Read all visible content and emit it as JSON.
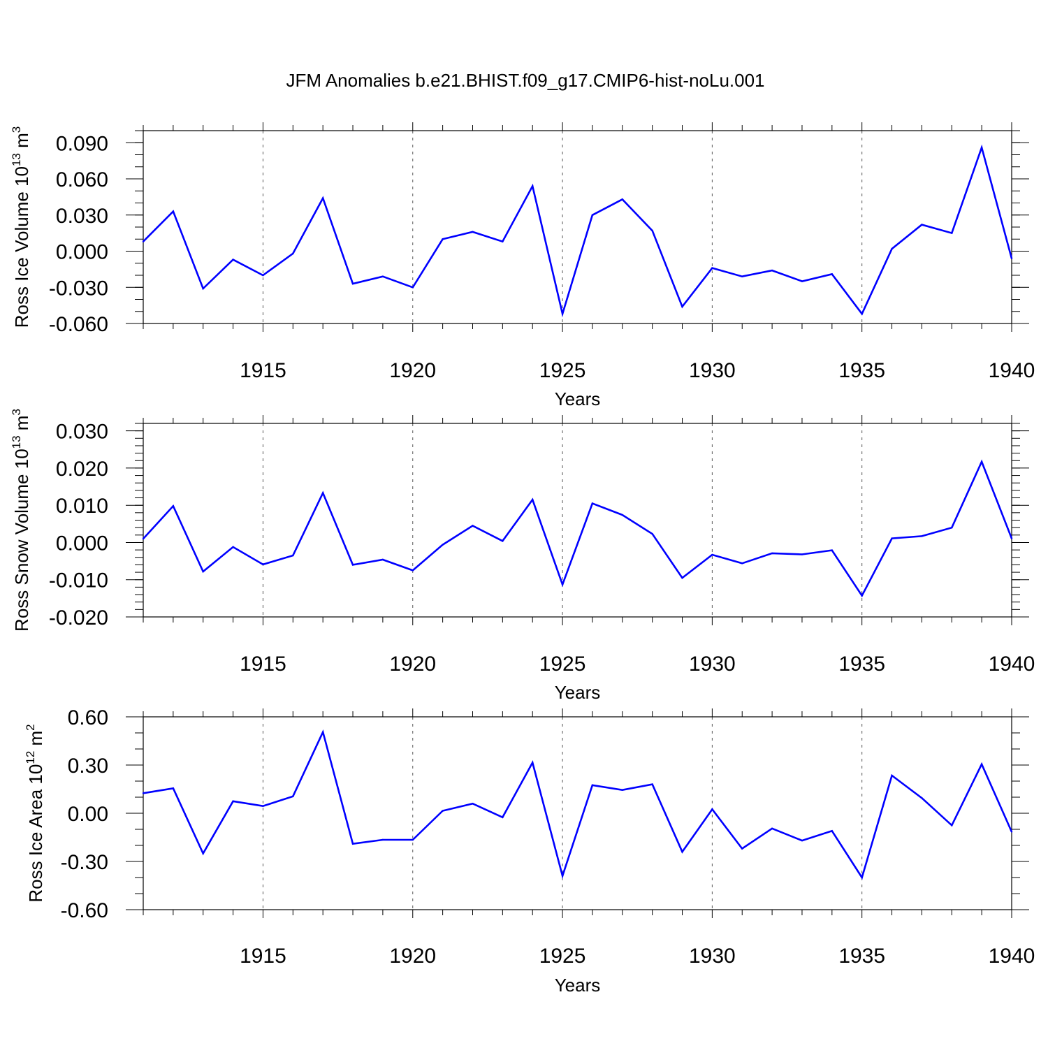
{
  "title": "JFM Anomalies b.e21.BHIST.f09_g17.CMIP6-hist-noLu.001",
  "colors": {
    "line": "#0000ff",
    "axis": "#000000",
    "grid": "#555555"
  },
  "chart_data": [
    {
      "type": "line",
      "ylabel_text": "Ross Ice Volume 10",
      "ylabel_exp": "13",
      "ylabel_unit": " m",
      "ylabel_unit_exp": "3",
      "xlabel": "Years",
      "xlim": [
        1911,
        1940
      ],
      "ylim": [
        -0.06,
        0.1
      ],
      "yticks": [
        -0.06,
        -0.03,
        0.0,
        0.03,
        0.06,
        0.09
      ],
      "ytick_labels": [
        "-0.060",
        "-0.030",
        "0.000",
        "0.030",
        "0.060",
        "0.090"
      ],
      "yminor_step": 0.01,
      "xticks": [
        1915,
        1920,
        1925,
        1930,
        1935,
        1940
      ],
      "xtick_labels": [
        "1915",
        "1920",
        "1925",
        "1930",
        "1935",
        "1940"
      ],
      "grid": "dashed vertical at major x ticks",
      "x": [
        1911,
        1912,
        1913,
        1914,
        1915,
        1916,
        1917,
        1918,
        1919,
        1920,
        1921,
        1922,
        1923,
        1924,
        1925,
        1926,
        1927,
        1928,
        1929,
        1930,
        1931,
        1932,
        1933,
        1934,
        1935,
        1936,
        1937,
        1938,
        1939,
        1940
      ],
      "series": [
        {
          "values": [
            0.008,
            0.033,
            -0.031,
            -0.007,
            -0.02,
            -0.002,
            0.044,
            -0.027,
            -0.021,
            -0.03,
            0.01,
            0.016,
            0.008,
            0.054,
            -0.052,
            0.03,
            0.043,
            0.017,
            -0.046,
            -0.014,
            -0.021,
            -0.016,
            -0.025,
            -0.019,
            -0.052,
            0.002,
            0.022,
            0.015,
            0.086,
            -0.006
          ]
        }
      ]
    },
    {
      "type": "line",
      "ylabel_text": "Ross Snow Volume 10",
      "ylabel_exp": "13",
      "ylabel_unit": " m",
      "ylabel_unit_exp": "3",
      "xlabel": "Years",
      "xlim": [
        1911,
        1940
      ],
      "ylim": [
        -0.02,
        0.032
      ],
      "yticks": [
        -0.02,
        -0.01,
        0.0,
        0.01,
        0.02,
        0.03
      ],
      "ytick_labels": [
        "-0.020",
        "-0.010",
        "0.000",
        "0.010",
        "0.020",
        "0.030"
      ],
      "yminor_step": 0.002,
      "xticks": [
        1915,
        1920,
        1925,
        1930,
        1935,
        1940
      ],
      "xtick_labels": [
        "1915",
        "1920",
        "1925",
        "1930",
        "1935",
        "1940"
      ],
      "grid": "dashed vertical at major x ticks",
      "x": [
        1911,
        1912,
        1913,
        1914,
        1915,
        1916,
        1917,
        1918,
        1919,
        1920,
        1921,
        1922,
        1923,
        1924,
        1925,
        1926,
        1927,
        1928,
        1929,
        1930,
        1931,
        1932,
        1933,
        1934,
        1935,
        1936,
        1937,
        1938,
        1939,
        1940
      ],
      "series": [
        {
          "values": [
            0.001,
            0.0098,
            -0.0078,
            -0.0012,
            -0.0059,
            -0.0035,
            0.0133,
            -0.006,
            -0.0046,
            -0.0075,
            -0.0006,
            0.0045,
            0.0004,
            0.0115,
            -0.0113,
            0.0105,
            0.0074,
            0.0023,
            -0.0095,
            -0.0033,
            -0.0056,
            -0.0029,
            -0.0032,
            -0.0021,
            -0.0143,
            0.0011,
            0.0017,
            0.004,
            0.0217,
            0.0011
          ]
        }
      ]
    },
    {
      "type": "line",
      "ylabel_text": "Ross Ice Area 10",
      "ylabel_exp": "12",
      "ylabel_unit": " m",
      "ylabel_unit_exp": "2",
      "xlabel": "Years",
      "xlim": [
        1911,
        1940
      ],
      "ylim": [
        -0.6,
        0.6
      ],
      "yticks": [
        -0.6,
        -0.3,
        0.0,
        0.3,
        0.6
      ],
      "ytick_labels": [
        "-0.60",
        "-0.30",
        "0.00",
        "0.30",
        "0.60"
      ],
      "yminor_step": 0.1,
      "xticks": [
        1915,
        1920,
        1925,
        1930,
        1935,
        1940
      ],
      "xtick_labels": [
        "1915",
        "1920",
        "1925",
        "1930",
        "1935",
        "1940"
      ],
      "grid": "dashed vertical at major x ticks",
      "x": [
        1911,
        1912,
        1913,
        1914,
        1915,
        1916,
        1917,
        1918,
        1919,
        1920,
        1921,
        1922,
        1923,
        1924,
        1925,
        1926,
        1927,
        1928,
        1929,
        1930,
        1931,
        1932,
        1933,
        1934,
        1935,
        1936,
        1937,
        1938,
        1939,
        1940
      ],
      "series": [
        {
          "values": [
            0.125,
            0.155,
            -0.25,
            0.075,
            0.045,
            0.105,
            0.505,
            -0.19,
            -0.165,
            -0.165,
            0.015,
            0.06,
            -0.025,
            0.315,
            -0.39,
            0.175,
            0.145,
            0.18,
            -0.24,
            0.025,
            -0.22,
            -0.095,
            -0.17,
            -0.11,
            -0.4,
            0.235,
            0.095,
            -0.075,
            0.305,
            -0.115
          ]
        }
      ]
    }
  ]
}
